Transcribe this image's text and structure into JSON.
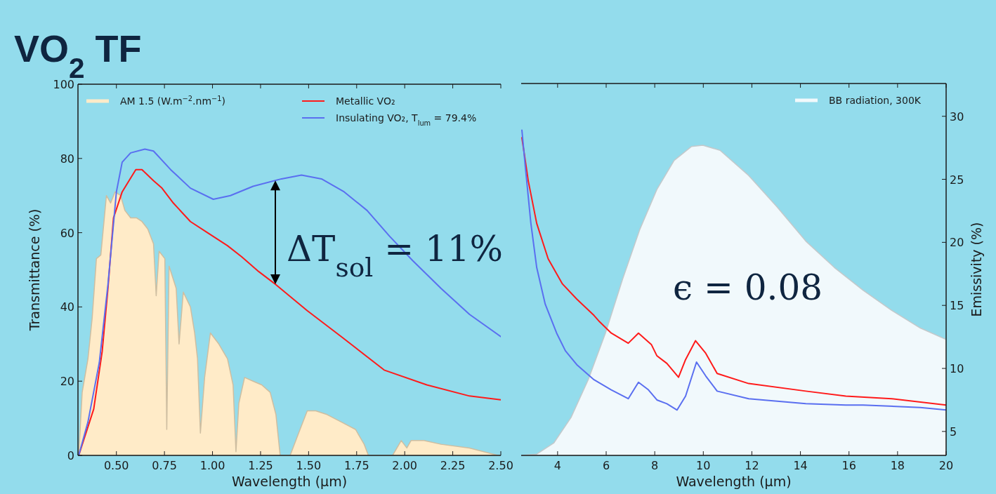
{
  "chart_data": [
    {
      "type": "line",
      "title": "VO$_{2}$ TF",
      "xlabel": "Wavelength (µm)",
      "ylabel": "Transmittance (%)",
      "xlim": [
        0.3,
        2.5
      ],
      "xticks": [
        {
          "value": 0.5,
          "label": "0.50"
        },
        {
          "value": 0.75,
          "label": "0.75"
        },
        {
          "value": 1.0,
          "label": "1.00"
        },
        {
          "value": 1.25,
          "label": "1.25"
        },
        {
          "value": 1.5,
          "label": "1.50"
        },
        {
          "value": 1.75,
          "label": "1.75"
        },
        {
          "value": 2.0,
          "label": "2.00"
        },
        {
          "value": 2.25,
          "label": "2.25"
        },
        {
          "value": 2.5,
          "label": "2.50"
        }
      ],
      "ylim": [
        0,
        100
      ],
      "yticks": [
        0,
        20,
        40,
        60,
        80,
        100
      ],
      "legend": "top",
      "grid": false,
      "annotations": [
        "ΔT$_{sol}$ = 11%"
      ],
      "series": [
        {
          "name": "AM 1.5 (W.m$^{−2}$.nm$^{−1}$)",
          "type": "area",
          "color": "#ffebc8",
          "x": [
            0.304,
            0.322,
            0.352,
            0.374,
            0.396,
            0.419,
            0.448,
            0.47,
            0.493,
            0.522,
            0.544,
            0.574,
            0.604,
            0.633,
            0.663,
            0.693,
            0.707,
            0.722,
            0.752,
            0.762,
            0.774,
            0.811,
            0.826,
            0.848,
            0.885,
            0.907,
            0.922,
            0.937,
            0.959,
            0.989,
            1.033,
            1.078,
            1.107,
            1.122,
            1.137,
            1.167,
            1.211,
            1.256,
            1.3,
            1.33,
            1.352,
            1.404,
            1.448,
            1.493,
            1.537,
            1.596,
            1.67,
            1.744,
            1.789,
            1.811,
            1.937,
            1.982,
            2.011,
            2.033,
            2.1,
            2.189,
            2.337,
            2.485,
            2.5
          ],
          "values": [
            0,
            17,
            26,
            37,
            53,
            54,
            70,
            68,
            71,
            70,
            66,
            64,
            64,
            63,
            61,
            57,
            43,
            55,
            53,
            7,
            51,
            45,
            30,
            44,
            40,
            33,
            26,
            6,
            21,
            33,
            30,
            26,
            19,
            1,
            14,
            21,
            20,
            19,
            17,
            11,
            0,
            0,
            6,
            12,
            12,
            11,
            9,
            7,
            3,
            0,
            0,
            4,
            2,
            4,
            4,
            3,
            2,
            0,
            0
          ]
        },
        {
          "name": "Metallic VO₂",
          "color": "#ff1a1a",
          "x": [
            0.304,
            0.382,
            0.426,
            0.456,
            0.485,
            0.53,
            0.601,
            0.633,
            0.693,
            0.737,
            0.796,
            0.885,
            0.974,
            1.078,
            1.152,
            1.241,
            1.33,
            1.493,
            1.67,
            1.893,
            2.115,
            2.337,
            2.5
          ],
          "values": [
            0,
            12.5,
            28,
            45,
            64,
            71,
            77,
            77,
            74,
            72,
            68,
            63,
            60,
            56.5,
            53.5,
            49.5,
            46,
            39,
            32,
            23,
            19,
            16,
            15
          ]
        },
        {
          "name": "Insulating VO₂, T$_{lum}$ = 79.4%",
          "color": "#5a6ff0",
          "x": [
            0.304,
            0.352,
            0.411,
            0.456,
            0.5,
            0.53,
            0.574,
            0.648,
            0.693,
            0.782,
            0.885,
            1.004,
            1.093,
            1.211,
            1.359,
            1.463,
            1.567,
            1.685,
            1.804,
            1.922,
            2.041,
            2.189,
            2.337,
            2.5
          ],
          "values": [
            0,
            9,
            25,
            46,
            71,
            79,
            81.5,
            82.5,
            82,
            77,
            72,
            69,
            70,
            72.5,
            74.5,
            75.5,
            74.5,
            71,
            66,
            59,
            52.5,
            45,
            38,
            32
          ]
        }
      ]
    },
    {
      "type": "line",
      "xlabel": "Wavelength (µm)",
      "y2label": "Emissivity (%)",
      "xlim": [
        2.5,
        20
      ],
      "xticks": [
        4,
        6,
        8,
        10,
        12,
        14,
        16,
        18,
        20
      ],
      "y2lim": [
        3.1,
        32.6
      ],
      "y2ticks": [
        5,
        10,
        15,
        20,
        25,
        30
      ],
      "legend": "top right",
      "grid": false,
      "annotations": [
        "ϵ = 0.08"
      ],
      "series": [
        {
          "name": "BB radiation, 300K",
          "type": "area",
          "axis": "y2",
          "color": "#f1f9fc",
          "x": [
            2.53,
            3.14,
            3.85,
            4.55,
            5.26,
            5.97,
            6.68,
            7.38,
            8.09,
            8.8,
            9.51,
            9.98,
            10.69,
            11.87,
            13.04,
            14.22,
            15.4,
            16.58,
            17.76,
            18.94,
            20
          ],
          "values": [
            3.1,
            3.2,
            4.1,
            6.1,
            9.1,
            12.8,
            17.1,
            21,
            24.2,
            26.5,
            27.6,
            27.7,
            27.3,
            25.3,
            22.8,
            20.1,
            18,
            16.2,
            14.6,
            13.2,
            12.3
          ]
        },
        {
          "color": "#ff1a1a",
          "axis": "y2",
          "x": [
            2.53,
            2.79,
            3.14,
            3.61,
            4.2,
            4.79,
            5.5,
            5.73,
            6.21,
            6.91,
            7.33,
            7.86,
            8.09,
            8.5,
            8.98,
            9.27,
            9.68,
            10.1,
            10.57,
            11.87,
            14.22,
            15.87,
            17.76,
            20
          ],
          "values": [
            28.3,
            24.9,
            21.5,
            18.7,
            16.7,
            15.5,
            14.2,
            13.7,
            12.8,
            12,
            12.8,
            11.9,
            11,
            10.4,
            9.3,
            10.7,
            12.2,
            11.2,
            9.6,
            8.8,
            8.2,
            7.8,
            7.6,
            7.1
          ]
        },
        {
          "color": "#5a6ff0",
          "axis": "y2",
          "x": [
            2.53,
            2.67,
            2.9,
            3.14,
            3.49,
            3.96,
            4.32,
            4.79,
            5.5,
            6.21,
            6.91,
            7.33,
            7.74,
            8.09,
            8.5,
            8.92,
            9.27,
            9.72,
            10.1,
            10.57,
            11.87,
            14.22,
            15.87,
            16.58,
            18.94,
            20
          ],
          "values": [
            28.9,
            26,
            21.5,
            18,
            15.1,
            12.8,
            11.4,
            10.3,
            9.1,
            8.3,
            7.6,
            8.9,
            8.3,
            7.5,
            7.2,
            6.7,
            7.8,
            10.5,
            9.4,
            8.2,
            7.6,
            7.2,
            7.1,
            7.1,
            6.9,
            6.7
          ]
        }
      ]
    }
  ]
}
